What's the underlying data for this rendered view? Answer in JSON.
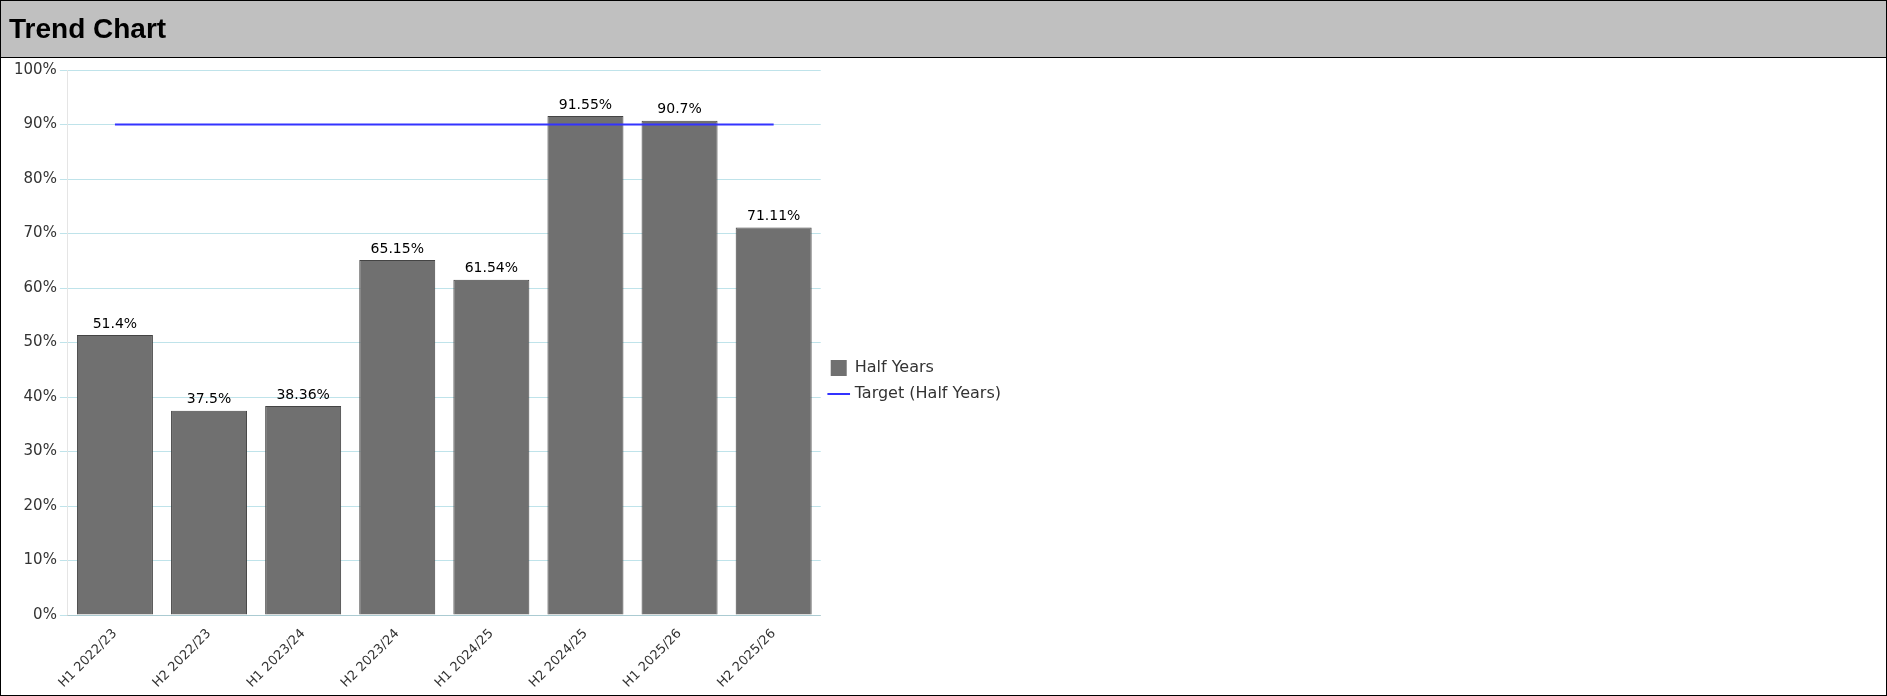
{
  "chart_data": {
    "type": "bar",
    "title": "Trend Chart",
    "categories": [
      "H1 2022/23",
      "H2 2022/23",
      "H1 2023/24",
      "H2 2023/24",
      "H1 2024/25",
      "H2 2024/25",
      "H1 2025/26",
      "H2 2025/26"
    ],
    "series": [
      {
        "name": "Half Years",
        "color": "#707070",
        "values": [
          51.4,
          37.5,
          38.36,
          65.15,
          61.54,
          91.55,
          90.7,
          71.11
        ],
        "value_labels": [
          "51.4%",
          "37.5%",
          "38.36%",
          "65.15%",
          "61.54%",
          "91.55%",
          "90.7%",
          "71.11%"
        ]
      },
      {
        "name": "Target (Half Years)",
        "type": "line",
        "color": "#3333ff",
        "values": [
          90,
          90,
          90,
          90,
          90,
          90,
          90,
          90
        ]
      }
    ],
    "ylim": [
      0,
      100
    ],
    "yticks": [
      {
        "value": 0,
        "label": "0%"
      },
      {
        "value": 10,
        "label": "10%"
      },
      {
        "value": 20,
        "label": "20%"
      },
      {
        "value": 30,
        "label": "30%"
      },
      {
        "value": 40,
        "label": "40%"
      },
      {
        "value": 50,
        "label": "50%"
      },
      {
        "value": 60,
        "label": "60%"
      },
      {
        "value": 70,
        "label": "70%"
      },
      {
        "value": 80,
        "label": "80%"
      },
      {
        "value": 90,
        "label": "90%"
      },
      {
        "value": 100,
        "label": "100%"
      }
    ],
    "grid": "y",
    "legend": "right",
    "marker": "none"
  }
}
